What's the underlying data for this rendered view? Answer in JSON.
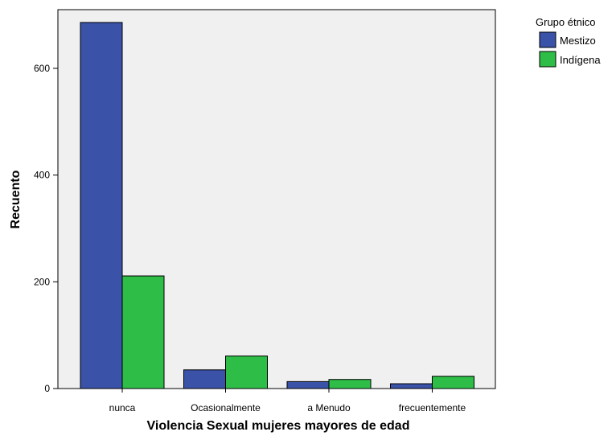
{
  "chart_data": {
    "type": "bar",
    "categories": [
      "nunca",
      "Ocasionalmente",
      "a Menudo",
      "frecuentemente"
    ],
    "series": [
      {
        "name": "Mestizo",
        "values": [
          686,
          35,
          13,
          9
        ],
        "color": "#3a52a8"
      },
      {
        "name": "Indígena",
        "values": [
          211,
          61,
          17,
          23
        ],
        "color": "#2ebd46"
      }
    ],
    "xlabel": "Violencia Sexual mujeres mayores de edad",
    "ylabel": "Recuento",
    "ylim": [
      0,
      710
    ],
    "yticks": [
      0,
      200,
      400,
      600
    ],
    "legend_title": "Grupo étnico",
    "legend_placement": "top-right",
    "grid": false,
    "background_color": "#f0f0f0"
  }
}
